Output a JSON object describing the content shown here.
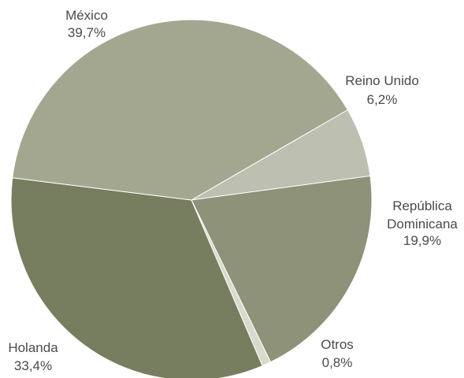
{
  "chart_data": {
    "type": "pie",
    "start_angle_deg": -30,
    "direction": "clockwise",
    "slices": [
      {
        "name": "Reino Unido",
        "value_label": "6,2%",
        "value": 6.2,
        "color": "#bdbfb1"
      },
      {
        "name": "República Dominicana",
        "label_lines": [
          "República",
          "Dominicana"
        ],
        "value_label": "19,9%",
        "value": 19.9,
        "color": "#8d9278"
      },
      {
        "name": "Otros",
        "value_label": "0,8%",
        "value": 0.8,
        "color": "#d8dacc"
      },
      {
        "name": "Holanda",
        "value_label": "33,4%",
        "value": 33.4,
        "color": "#777e5f"
      },
      {
        "name": "México",
        "value_label": "39,7%",
        "value": 39.7,
        "color": "#a3a790"
      }
    ]
  }
}
